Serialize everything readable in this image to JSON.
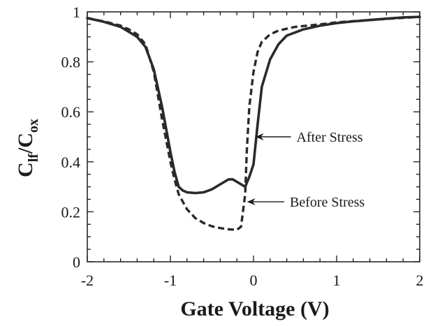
{
  "chart_data": {
    "type": "line",
    "xlabel": "Gate Voltage (V)",
    "ylabel": {
      "main": "C",
      "sub1": "lf",
      "sep": "/C",
      "sub2": "ox"
    },
    "xlim": [
      -2,
      2
    ],
    "ylim": [
      0,
      1
    ],
    "x_ticks": [
      -2,
      -1,
      0,
      1,
      2
    ],
    "x_tick_labels": [
      "-2",
      "-1",
      "0",
      "1",
      "2"
    ],
    "y_ticks": [
      0,
      0.2,
      0.4,
      0.6,
      0.8,
      1
    ],
    "y_tick_labels": [
      "0",
      "0.2",
      "0.4",
      "0.6",
      "0.8",
      "1"
    ],
    "grid": false,
    "series": [
      {
        "name": "After Stress",
        "style": "solid",
        "points": [
          [
            -2,
            0.975
          ],
          [
            -1.8,
            0.96
          ],
          [
            -1.6,
            0.94
          ],
          [
            -1.5,
            0.92
          ],
          [
            -1.4,
            0.9
          ],
          [
            -1.3,
            0.86
          ],
          [
            -1.2,
            0.77
          ],
          [
            -1.1,
            0.62
          ],
          [
            -1.0,
            0.44
          ],
          [
            -0.95,
            0.36
          ],
          [
            -0.9,
            0.3
          ],
          [
            -0.85,
            0.285
          ],
          [
            -0.8,
            0.278
          ],
          [
            -0.7,
            0.275
          ],
          [
            -0.6,
            0.278
          ],
          [
            -0.5,
            0.29
          ],
          [
            -0.4,
            0.31
          ],
          [
            -0.3,
            0.33
          ],
          [
            -0.25,
            0.33
          ],
          [
            -0.2,
            0.32
          ],
          [
            -0.15,
            0.31
          ],
          [
            -0.1,
            0.3
          ],
          [
            -0.05,
            0.34
          ],
          [
            0,
            0.39
          ],
          [
            0.05,
            0.55
          ],
          [
            0.1,
            0.7
          ],
          [
            0.2,
            0.81
          ],
          [
            0.3,
            0.87
          ],
          [
            0.4,
            0.905
          ],
          [
            0.6,
            0.93
          ],
          [
            0.8,
            0.945
          ],
          [
            1.0,
            0.955
          ],
          [
            1.2,
            0.962
          ],
          [
            1.5,
            0.97
          ],
          [
            1.8,
            0.978
          ],
          [
            2,
            0.98
          ]
        ]
      },
      {
        "name": "Before Stress",
        "style": "dashed",
        "points": [
          [
            -2,
            0.975
          ],
          [
            -1.8,
            0.962
          ],
          [
            -1.6,
            0.945
          ],
          [
            -1.5,
            0.93
          ],
          [
            -1.4,
            0.91
          ],
          [
            -1.3,
            0.87
          ],
          [
            -1.2,
            0.76
          ],
          [
            -1.1,
            0.57
          ],
          [
            -1.0,
            0.4
          ],
          [
            -0.95,
            0.33
          ],
          [
            -0.9,
            0.27
          ],
          [
            -0.8,
            0.21
          ],
          [
            -0.7,
            0.175
          ],
          [
            -0.6,
            0.155
          ],
          [
            -0.5,
            0.142
          ],
          [
            -0.4,
            0.135
          ],
          [
            -0.3,
            0.13
          ],
          [
            -0.2,
            0.128
          ],
          [
            -0.15,
            0.14
          ],
          [
            -0.1,
            0.27
          ],
          [
            -0.08,
            0.45
          ],
          [
            -0.05,
            0.62
          ],
          [
            0,
            0.76
          ],
          [
            0.05,
            0.84
          ],
          [
            0.1,
            0.88
          ],
          [
            0.2,
            0.91
          ],
          [
            0.3,
            0.925
          ],
          [
            0.5,
            0.94
          ],
          [
            0.8,
            0.95
          ],
          [
            1.0,
            0.958
          ],
          [
            1.3,
            0.965
          ],
          [
            1.6,
            0.972
          ],
          [
            2,
            0.98
          ]
        ]
      }
    ],
    "annotations": [
      {
        "text": "After Stress",
        "target": [
          -0.02,
          0.5
        ],
        "label_pos": [
          0.45,
          0.5
        ]
      },
      {
        "text": "Before Stress",
        "target": [
          -0.12,
          0.24
        ],
        "label_pos": [
          0.37,
          0.24
        ]
      }
    ]
  }
}
